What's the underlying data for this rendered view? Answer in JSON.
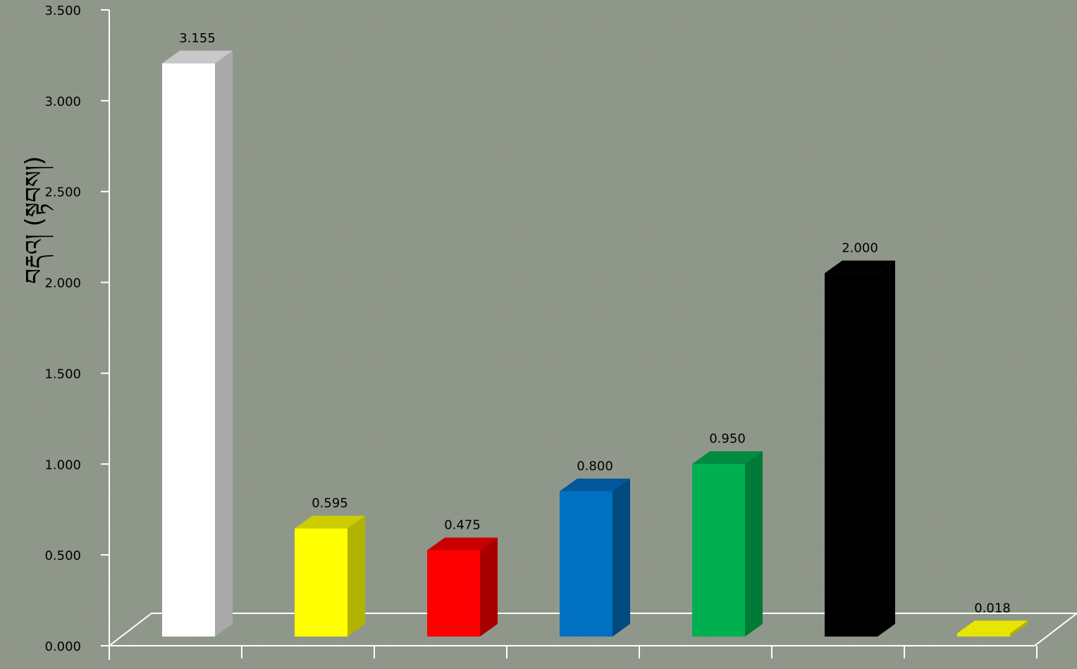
{
  "chart_data": {
    "type": "bar",
    "title": "",
    "xlabel": "",
    "ylabel": "བརྡའ། (སྟབས།)",
    "ylim": [
      0,
      3.5
    ],
    "y_ticks": [
      {
        "value": 0.0,
        "label": "0.000"
      },
      {
        "value": 0.5,
        "label": "0.500"
      },
      {
        "value": 1.0,
        "label": "1.000"
      },
      {
        "value": 1.5,
        "label": "1.500"
      },
      {
        "value": 2.0,
        "label": "2.000"
      },
      {
        "value": 2.5,
        "label": "2.500"
      },
      {
        "value": 3.0,
        "label": "3.000"
      },
      {
        "value": 3.5,
        "label": "3.500"
      }
    ],
    "bars": [
      {
        "value": 3.155,
        "label": "3.155",
        "color": "#ffffff",
        "side": "#a9a9a9",
        "top": "#c8c8c8"
      },
      {
        "value": 0.595,
        "label": "0.595",
        "color": "#ffff00",
        "side": "#b2b200",
        "top": "#cccc00"
      },
      {
        "value": 0.475,
        "label": "0.475",
        "color": "#ff0000",
        "side": "#a80000",
        "top": "#c80000"
      },
      {
        "value": 0.8,
        "label": "0.800",
        "color": "#0070c0",
        "side": "#004a80",
        "top": "#00579a"
      },
      {
        "value": 0.95,
        "label": "0.950",
        "color": "#00b050",
        "side": "#007a37",
        "top": "#008c40"
      },
      {
        "value": 2.0,
        "label": "2.000",
        "color": "#000000",
        "side": "#000000",
        "top": "#000000"
      },
      {
        "value": 0.018,
        "label": "0.018",
        "color": "#e6e600",
        "side": "#b2b200",
        "top": "#e6e600"
      }
    ]
  }
}
